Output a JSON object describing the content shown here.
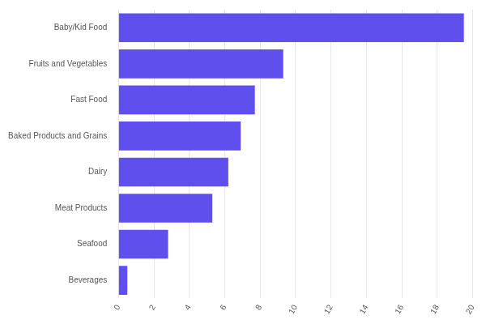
{
  "chart_data": {
    "type": "bar",
    "orientation": "horizontal",
    "categories": [
      "Baby/Kid Food",
      "Fruits and Vegetables",
      "Fast Food",
      "Baked Products and Grains",
      "Dairy",
      "Meat Products",
      "Seafood",
      "Beverages"
    ],
    "values": [
      19.5,
      9.3,
      7.7,
      6.9,
      6.2,
      5.3,
      2.8,
      0.5
    ],
    "color": "#5f50ee",
    "xlim": [
      0,
      20
    ],
    "xticks": [
      0,
      2,
      4,
      6,
      8,
      10,
      12,
      14,
      16,
      18,
      20
    ],
    "grid": true
  }
}
